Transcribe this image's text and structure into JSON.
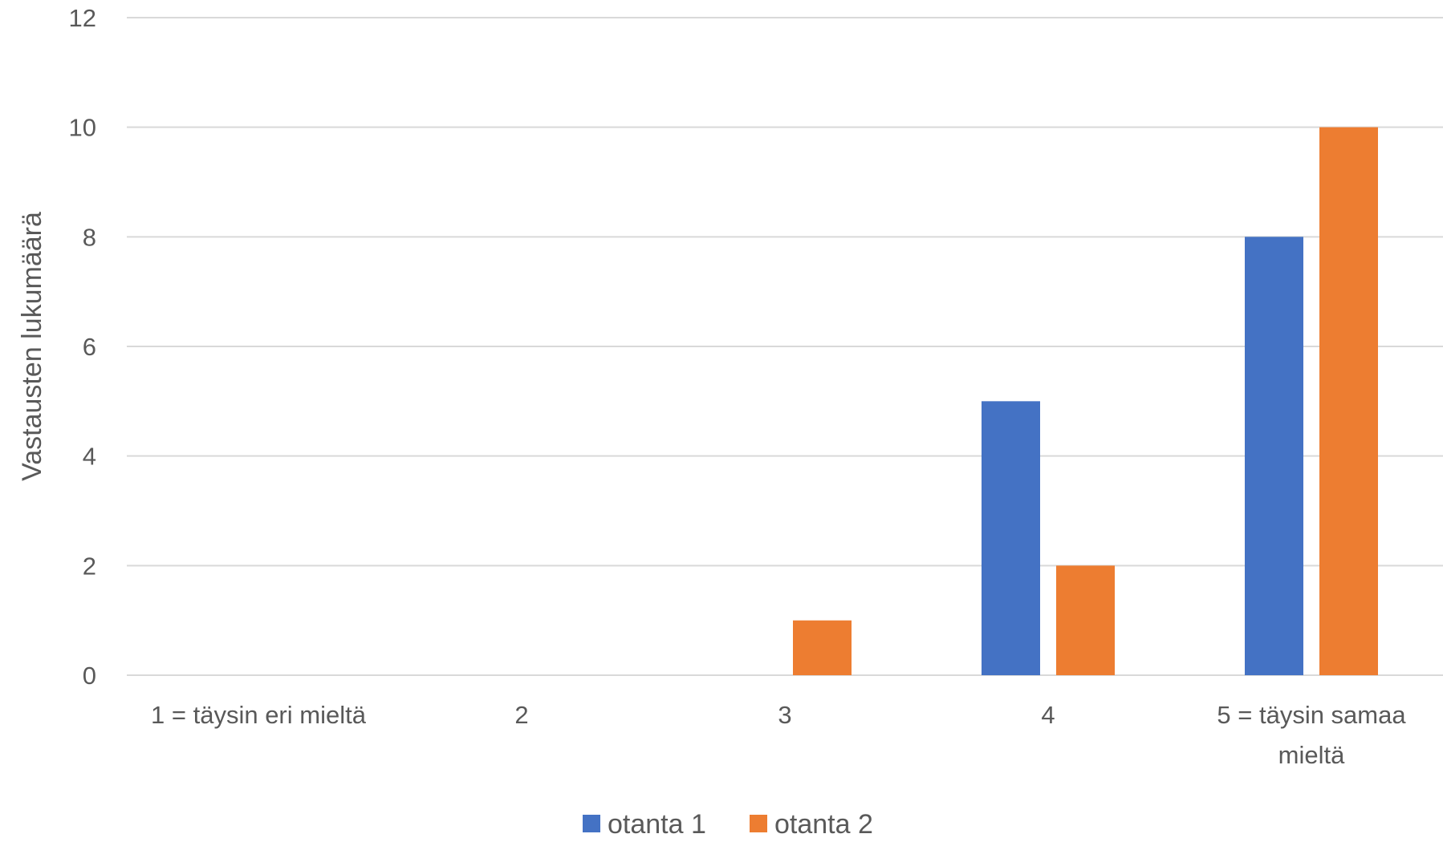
{
  "chart_data": {
    "type": "bar",
    "title": "",
    "xlabel": "",
    "ylabel": "Vastausten lukumäärä",
    "ylim": [
      0,
      12
    ],
    "yticks": [
      0,
      2,
      4,
      6,
      8,
      10,
      12
    ],
    "grid": true,
    "legend_position": "bottom",
    "categories": [
      [
        "1 = täysin eri mieltä"
      ],
      [
        "2"
      ],
      [
        "3"
      ],
      [
        "4"
      ],
      [
        "5 = täysin samaa",
        "mieltä"
      ]
    ],
    "series": [
      {
        "name": "otanta 1",
        "color": "#4472C4",
        "values": [
          0,
          0,
          0,
          5,
          8
        ]
      },
      {
        "name": "otanta 2",
        "color": "#ED7D31",
        "values": [
          0,
          0,
          1,
          2,
          10
        ]
      }
    ],
    "gridline_color": "#D9D9D9"
  }
}
